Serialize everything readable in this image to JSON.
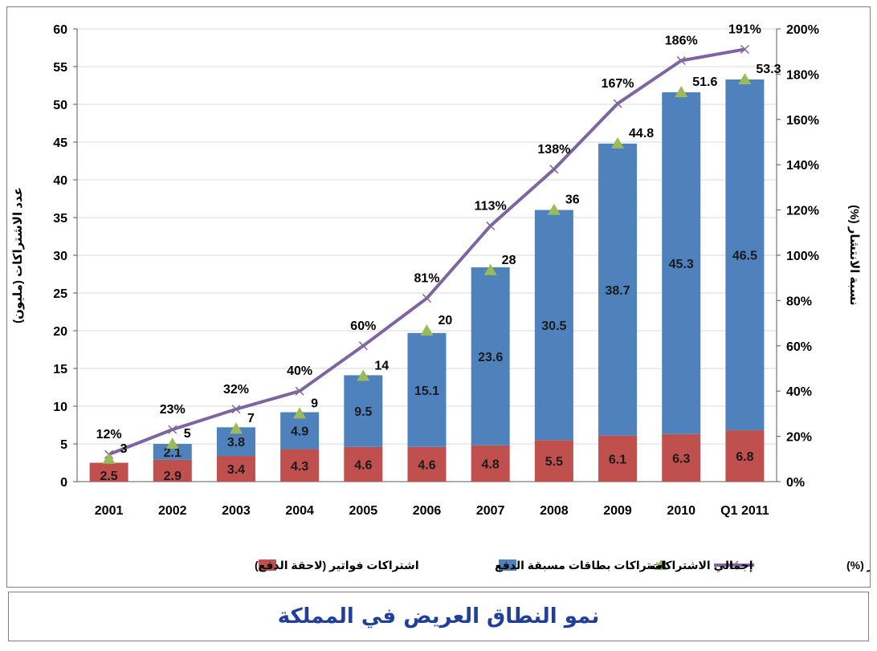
{
  "title": "نمو النطاق العريض في المملكة",
  "colors": {
    "postpaid": "#c0504d",
    "prepaid": "#4f81bd",
    "total_marker": "#9bbb59",
    "penetration_line": "#8064a2",
    "title": "#1f3f9a"
  },
  "chart_data": {
    "type": "bar",
    "stacked": true,
    "categories": [
      "2001",
      "2002",
      "2003",
      "2004",
      "2005",
      "2006",
      "2007",
      "2008",
      "2009",
      "2010",
      "Q1 2011"
    ],
    "series": [
      {
        "name": "اشتراكات فواتير (لاحقة الدفع)",
        "kind": "bar",
        "values": [
          2.5,
          2.9,
          3.4,
          4.3,
          4.6,
          4.6,
          4.8,
          5.5,
          6.1,
          6.3,
          6.8
        ]
      },
      {
        "name": "اشتراكات بطاقات مسبقة الدفع",
        "kind": "bar",
        "values": [
          null,
          2.1,
          3.8,
          4.9,
          9.5,
          15.1,
          23.6,
          30.5,
          38.7,
          45.3,
          46.5
        ]
      },
      {
        "name": "إجمالي الاشتراكات",
        "kind": "marker",
        "values": [
          3,
          5,
          7,
          9,
          14,
          20,
          28,
          36,
          44.8,
          51.6,
          53.3
        ]
      },
      {
        "name": "نسبة الانتشار (%)",
        "kind": "line",
        "axis": "right",
        "values": [
          12,
          23,
          32,
          40,
          60,
          81,
          113,
          138,
          167,
          186,
          191
        ]
      }
    ],
    "ylabel": "عدد الاشتراكات (مليون)",
    "y2label": "نسبة الانتشار (%)",
    "ylim": [
      0,
      60
    ],
    "y_ticks": [
      0,
      5,
      10,
      15,
      20,
      25,
      30,
      35,
      40,
      45,
      50,
      55,
      60
    ],
    "y2lim": [
      0,
      200
    ],
    "y2_ticks": [
      "0%",
      "20%",
      "40%",
      "60%",
      "80%",
      "100%",
      "120%",
      "140%",
      "160%",
      "180%",
      "200%"
    ],
    "grid": true,
    "legend_position": "bottom"
  }
}
